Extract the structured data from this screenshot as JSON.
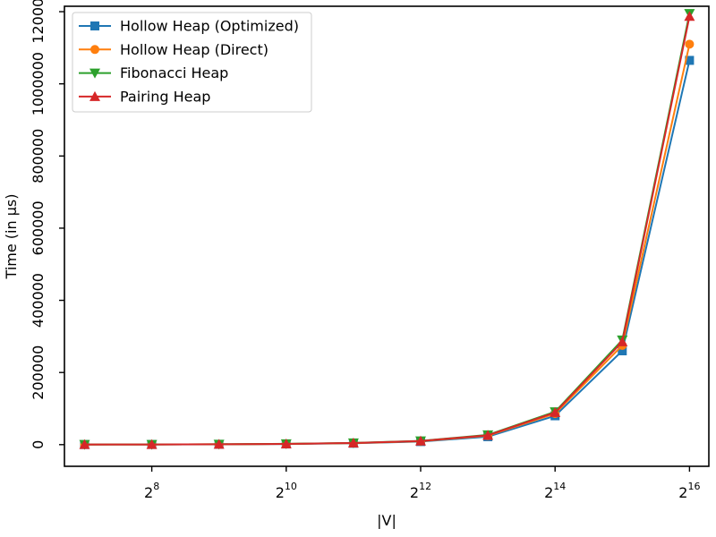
{
  "chart_data": {
    "type": "line",
    "xlabel": "|V|",
    "ylabel": "Time (in µs)",
    "x_scale": "log2",
    "x": [
      128,
      256,
      512,
      1024,
      2048,
      4096,
      8192,
      16384,
      32768,
      65536
    ],
    "x_ticks": [
      {
        "value": 256,
        "base": "2",
        "exp": "8"
      },
      {
        "value": 1024,
        "base": "2",
        "exp": "10"
      },
      {
        "value": 4096,
        "base": "2",
        "exp": "12"
      },
      {
        "value": 16384,
        "base": "2",
        "exp": "14"
      },
      {
        "value": 65536,
        "base": "2",
        "exp": "16"
      }
    ],
    "xlim": [
      104,
      80000
    ],
    "ylim": [
      -60000,
      1215000
    ],
    "y_ticks": [
      0,
      200000,
      400000,
      600000,
      800000,
      1000000,
      1200000
    ],
    "y_tick_labels": [
      "0",
      "200000",
      "400000",
      "600000",
      "800000",
      "1000000",
      "1200000"
    ],
    "grid": false,
    "legend_position": "top-left",
    "series": [
      {
        "name": "Hollow Heap (Optimized)",
        "color": "#1f77b4",
        "marker": "square",
        "values": [
          300,
          500,
          900,
          1800,
          3800,
          8500,
          22000,
          80000,
          260000,
          1065000
        ]
      },
      {
        "name": "Hollow Heap (Direct)",
        "color": "#ff7f0e",
        "marker": "circle",
        "values": [
          300,
          500,
          1000,
          2000,
          4200,
          9500,
          25000,
          86000,
          275000,
          1110000
        ]
      },
      {
        "name": "Fibonacci Heap",
        "color": "#2ca02c",
        "marker": "triangle-down",
        "values": [
          400,
          600,
          1100,
          2200,
          4700,
          10500,
          27000,
          91000,
          290000,
          1195000
        ]
      },
      {
        "name": "Pairing Heap",
        "color": "#d62728",
        "marker": "triangle-up",
        "values": [
          350,
          550,
          1050,
          2100,
          4500,
          10000,
          26000,
          89000,
          285000,
          1187000
        ]
      }
    ]
  }
}
